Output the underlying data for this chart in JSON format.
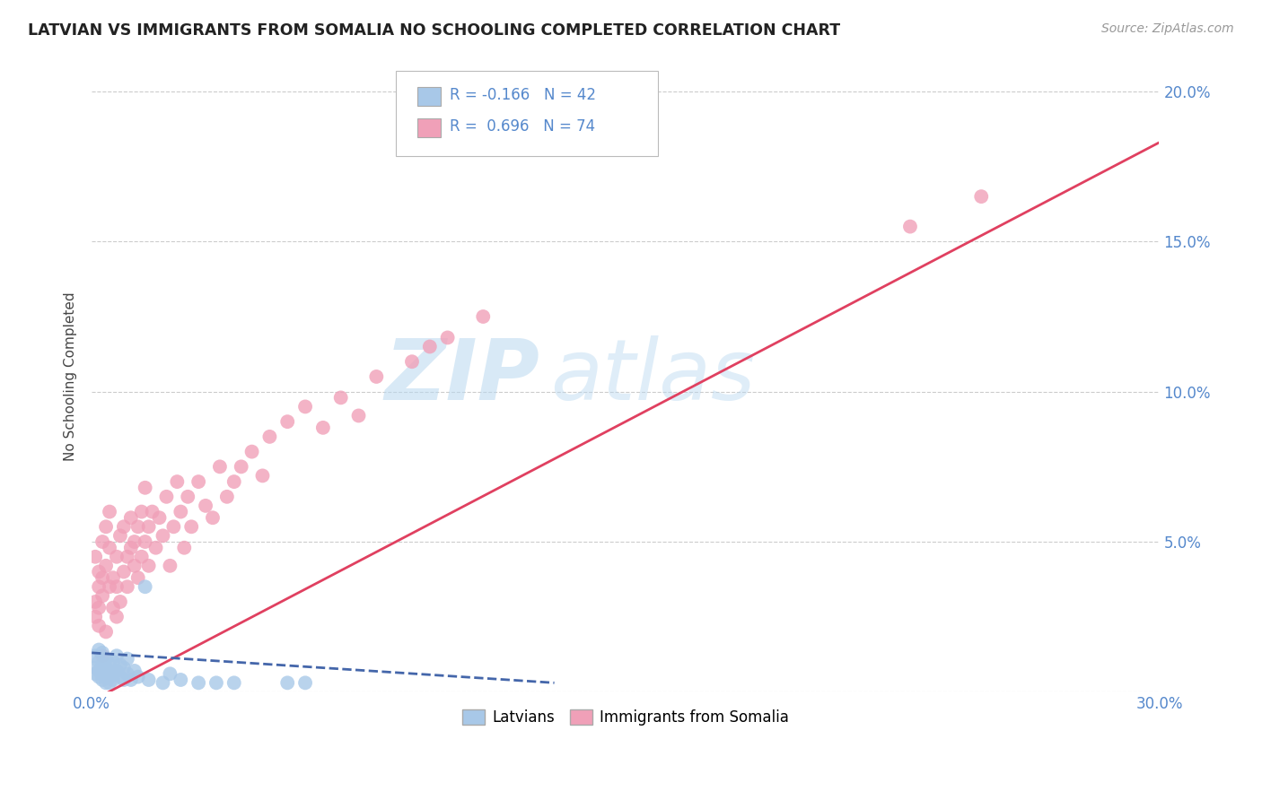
{
  "title": "LATVIAN VS IMMIGRANTS FROM SOMALIA NO SCHOOLING COMPLETED CORRELATION CHART",
  "source": "Source: ZipAtlas.com",
  "ylabel": "No Schooling Completed",
  "xlim": [
    0.0,
    0.3
  ],
  "ylim": [
    0.0,
    0.21
  ],
  "xticks": [
    0.0,
    0.05,
    0.1,
    0.15,
    0.2,
    0.25,
    0.3
  ],
  "yticks": [
    0.0,
    0.05,
    0.1,
    0.15,
    0.2
  ],
  "watermark_zip": "ZIP",
  "watermark_atlas": "atlas",
  "legend_latvian_r": "R = -0.166",
  "legend_latvian_n": "N = 42",
  "legend_somalia_r": "R =  0.696",
  "legend_somalia_n": "N = 74",
  "color_latvian": "#a8c8e8",
  "color_somalia": "#f0a0b8",
  "color_latvian_line": "#4466aa",
  "color_somalia_line": "#e04060",
  "color_axis_text": "#5588cc",
  "somalia_line_x0": 0.0,
  "somalia_line_y0": -0.003,
  "somalia_line_x1": 0.3,
  "somalia_line_y1": 0.183,
  "latvian_line_x0": 0.0,
  "latvian_line_y0": 0.013,
  "latvian_line_x1": 0.13,
  "latvian_line_y1": 0.003,
  "latvian_x": [
    0.001,
    0.001,
    0.001,
    0.002,
    0.002,
    0.002,
    0.002,
    0.003,
    0.003,
    0.003,
    0.003,
    0.004,
    0.004,
    0.004,
    0.005,
    0.005,
    0.005,
    0.005,
    0.006,
    0.006,
    0.006,
    0.007,
    0.007,
    0.008,
    0.008,
    0.009,
    0.009,
    0.01,
    0.01,
    0.011,
    0.012,
    0.013,
    0.015,
    0.016,
    0.02,
    0.022,
    0.025,
    0.03,
    0.035,
    0.04,
    0.055,
    0.06
  ],
  "latvian_y": [
    0.008,
    0.006,
    0.012,
    0.005,
    0.01,
    0.014,
    0.007,
    0.004,
    0.009,
    0.013,
    0.006,
    0.003,
    0.008,
    0.011,
    0.005,
    0.009,
    0.007,
    0.003,
    0.006,
    0.01,
    0.004,
    0.007,
    0.012,
    0.005,
    0.009,
    0.004,
    0.008,
    0.006,
    0.011,
    0.004,
    0.007,
    0.005,
    0.035,
    0.004,
    0.003,
    0.006,
    0.004,
    0.003,
    0.003,
    0.003,
    0.003,
    0.003
  ],
  "somalia_x": [
    0.001,
    0.001,
    0.001,
    0.002,
    0.002,
    0.002,
    0.002,
    0.003,
    0.003,
    0.003,
    0.003,
    0.004,
    0.004,
    0.004,
    0.005,
    0.005,
    0.005,
    0.006,
    0.006,
    0.007,
    0.007,
    0.007,
    0.008,
    0.008,
    0.009,
    0.009,
    0.01,
    0.01,
    0.011,
    0.011,
    0.012,
    0.012,
    0.013,
    0.013,
    0.014,
    0.014,
    0.015,
    0.015,
    0.016,
    0.016,
    0.017,
    0.018,
    0.019,
    0.02,
    0.021,
    0.022,
    0.023,
    0.024,
    0.025,
    0.026,
    0.027,
    0.028,
    0.03,
    0.032,
    0.034,
    0.036,
    0.038,
    0.04,
    0.042,
    0.045,
    0.048,
    0.05,
    0.055,
    0.06,
    0.065,
    0.07,
    0.075,
    0.08,
    0.09,
    0.095,
    0.1,
    0.11,
    0.23,
    0.25
  ],
  "somalia_y": [
    0.03,
    0.045,
    0.025,
    0.035,
    0.04,
    0.028,
    0.022,
    0.05,
    0.038,
    0.032,
    0.012,
    0.042,
    0.055,
    0.02,
    0.048,
    0.035,
    0.06,
    0.028,
    0.038,
    0.045,
    0.035,
    0.025,
    0.052,
    0.03,
    0.04,
    0.055,
    0.045,
    0.035,
    0.048,
    0.058,
    0.05,
    0.042,
    0.055,
    0.038,
    0.06,
    0.045,
    0.05,
    0.068,
    0.042,
    0.055,
    0.06,
    0.048,
    0.058,
    0.052,
    0.065,
    0.042,
    0.055,
    0.07,
    0.06,
    0.048,
    0.065,
    0.055,
    0.07,
    0.062,
    0.058,
    0.075,
    0.065,
    0.07,
    0.075,
    0.08,
    0.072,
    0.085,
    0.09,
    0.095,
    0.088,
    0.098,
    0.092,
    0.105,
    0.11,
    0.115,
    0.118,
    0.125,
    0.155,
    0.165
  ]
}
